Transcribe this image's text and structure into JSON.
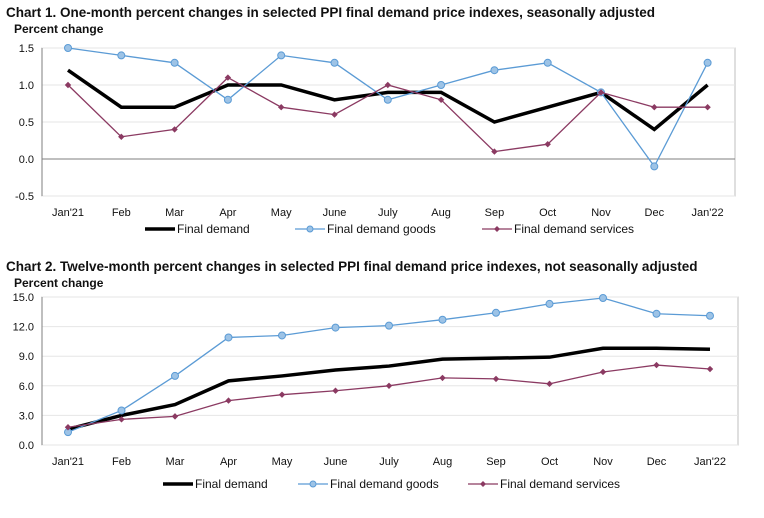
{
  "chart_data": [
    {
      "type": "line",
      "title": "Chart 1. One-month percent changes in selected PPI final demand price indexes, seasonally adjusted",
      "ylabel": "Percent change",
      "xlabel": "",
      "categories": [
        "Jan'21",
        "Feb",
        "Mar",
        "Apr",
        "May",
        "June",
        "July",
        "Aug",
        "Sep",
        "Oct",
        "Nov",
        "Dec",
        "Jan'22"
      ],
      "ylim": [
        -0.5,
        1.5
      ],
      "yticks": [
        1.5,
        1.0,
        0.5,
        0.0,
        -0.5
      ],
      "ytick_labels": [
        "1.5",
        "1.0",
        "0.5",
        "0.0",
        "-0.5"
      ],
      "grid": true,
      "legend": "bottom",
      "series": [
        {
          "name": "Final demand",
          "color": "#000000",
          "values": [
            1.2,
            0.7,
            0.7,
            1.0,
            1.0,
            0.8,
            0.9,
            0.9,
            0.5,
            0.7,
            0.9,
            0.4,
            1.0
          ]
        },
        {
          "name": "Final demand goods",
          "color": "#5b9bd5",
          "values": [
            1.5,
            1.4,
            1.3,
            0.8,
            1.4,
            1.3,
            0.8,
            1.0,
            1.2,
            1.3,
            0.9,
            -0.1,
            1.3
          ]
        },
        {
          "name": "Final demand services",
          "color": "#8b3a62",
          "values": [
            1.0,
            0.3,
            0.4,
            1.1,
            0.7,
            0.6,
            1.0,
            0.8,
            0.1,
            0.2,
            0.9,
            0.7,
            0.7
          ]
        }
      ]
    },
    {
      "type": "line",
      "title": "Chart 2. Twelve-month percent changes in selected PPI final demand price indexes, not seasonally adjusted",
      "ylabel": "Percent change",
      "xlabel": "",
      "categories": [
        "Jan'21",
        "Feb",
        "Mar",
        "Apr",
        "May",
        "June",
        "July",
        "Aug",
        "Sep",
        "Oct",
        "Nov",
        "Dec",
        "Jan'22"
      ],
      "ylim": [
        0.0,
        15.0
      ],
      "yticks": [
        15.0,
        12.0,
        9.0,
        6.0,
        3.0,
        0.0
      ],
      "ytick_labels": [
        "15.0",
        "12.0",
        "9.0",
        "6.0",
        "3.0",
        "0.0"
      ],
      "grid": true,
      "legend": "bottom",
      "series": [
        {
          "name": "Final demand",
          "color": "#000000",
          "values": [
            1.6,
            3.0,
            4.1,
            6.5,
            7.0,
            7.6,
            8.0,
            8.7,
            8.8,
            8.9,
            9.8,
            9.8,
            9.7
          ]
        },
        {
          "name": "Final demand goods",
          "color": "#5b9bd5",
          "values": [
            1.3,
            3.5,
            7.0,
            10.9,
            11.1,
            11.9,
            12.1,
            12.7,
            13.4,
            14.3,
            14.9,
            13.3,
            13.1
          ]
        },
        {
          "name": "Final demand services",
          "color": "#8b3a62",
          "values": [
            1.8,
            2.6,
            2.9,
            4.5,
            5.1,
            5.5,
            6.0,
            6.8,
            6.7,
            6.2,
            7.4,
            8.1,
            7.7
          ]
        }
      ]
    }
  ]
}
